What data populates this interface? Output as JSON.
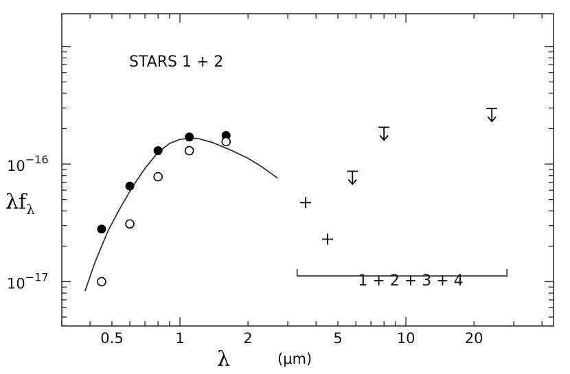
{
  "chart_data": {
    "type": "scatter",
    "title": "",
    "xlabel": "λ",
    "xunit": "(μm)",
    "ylabel": "λf",
    "ylabel_subscript": "λ",
    "x_scale": "log",
    "y_scale": "log",
    "xlim": [
      0.3,
      45
    ],
    "ylim": [
      4.2e-18,
      1.9e-15
    ],
    "grid": false,
    "x_ticklabels": [
      {
        "value": 0.5,
        "label": "0.5"
      },
      {
        "value": 1,
        "label": "1"
      },
      {
        "value": 2,
        "label": "2"
      },
      {
        "value": 5,
        "label": "5"
      },
      {
        "value": 10,
        "label": "10"
      },
      {
        "value": 20,
        "label": "20"
      }
    ],
    "y_ticklabels": [
      {
        "value": 1e-16,
        "base": "10",
        "exp": "−16"
      },
      {
        "value": 1e-17,
        "base": "10",
        "exp": "−17"
      }
    ],
    "annotations": [
      {
        "text": "STARS  1 + 2"
      },
      {
        "text": "1 + 2 + 3 + 4"
      }
    ],
    "series": [
      {
        "marker": "filled-circle",
        "x": [
          0.45,
          0.6,
          0.8,
          1.1,
          1.6
        ],
        "y": [
          2.8e-17,
          6.5e-17,
          1.3e-16,
          1.7e-16,
          1.75e-16
        ]
      },
      {
        "marker": "open-circle",
        "x": [
          0.45,
          0.6,
          0.8,
          1.1,
          1.6
        ],
        "y": [
          1e-17,
          3.1e-17,
          7.8e-17,
          1.3e-16,
          1.55e-16
        ]
      },
      {
        "marker": "plus",
        "x": [
          3.6,
          4.5
        ],
        "y": [
          4.7e-17,
          2.3e-17
        ]
      },
      {
        "marker": "upper-limit",
        "x": [
          5.8,
          8.0,
          24.0
        ],
        "y": [
          7.6e-17,
          1.8e-16,
          2.6e-16
        ]
      },
      {
        "marker": "line",
        "x": [
          0.38,
          0.42,
          0.48,
          0.55,
          0.62,
          0.7,
          0.8,
          0.9,
          1.0,
          1.1,
          1.2,
          1.4,
          1.7,
          2.0,
          2.3,
          2.7
        ],
        "y": [
          8.3e-18,
          1.45e-17,
          2.7e-17,
          4.4e-17,
          6.5e-17,
          9.2e-17,
          1.26e-16,
          1.5e-16,
          1.62e-16,
          1.66e-16,
          1.65e-16,
          1.52e-16,
          1.3e-16,
          1.12e-16,
          9.5e-17,
          7.6e-17
        ]
      }
    ],
    "bracket": {
      "x": [
        3.3,
        28
      ],
      "y": 1.12e-17
    }
  }
}
